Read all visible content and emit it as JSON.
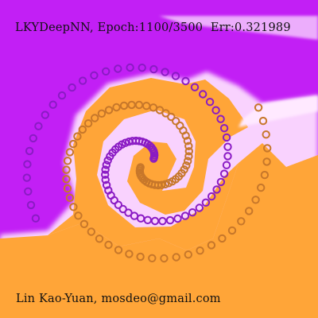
{
  "status": {
    "text": "LKYDeepNN, Epoch:1100/3500  Err:0.321989"
  },
  "author": {
    "text": "Lin Kao-Yuan, mosdeo@gmail.com"
  },
  "colors": {
    "class_a_region": "#c21ff5",
    "class_b_region": "#ffa538",
    "boundary_glow": "#ffffff",
    "class_a_marker": "#8a1bc4",
    "class_b_marker": "#c7772a",
    "text": "#111111"
  }
}
